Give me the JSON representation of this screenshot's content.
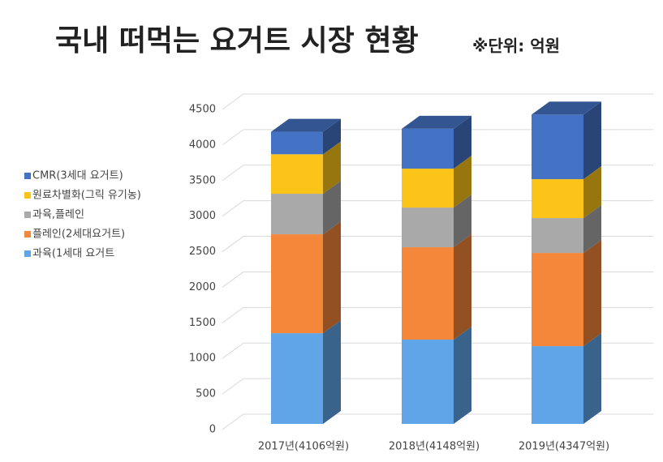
{
  "chart_data": {
    "type": "bar3d",
    "title": "국내 떠먹는 요거트 시장 현황",
    "subtitle": "※단위: 억원",
    "categories": [
      "2017년(4106억원)",
      "2018년(4148억원)",
      "2019년(4347억원)"
    ],
    "series": [
      {
        "name": "과육(1세대 요거트",
        "color": "#5fa5e8",
        "values": [
          1275,
          1185,
          1093
        ]
      },
      {
        "name": "플레인(2세대요거트)",
        "color": "#f5873a",
        "values": [
          1390,
          1298,
          1310
        ]
      },
      {
        "name": "과육,플레인",
        "color": "#a9a9a9",
        "values": [
          570,
          558,
          490
        ]
      },
      {
        "name": "원료차별화(그릭 유기농)",
        "color": "#fcc419",
        "values": [
          555,
          547,
          547
        ]
      },
      {
        "name": "CMR(3세대 요거트)",
        "color": "#4472c4",
        "values": [
          316,
          560,
          907
        ]
      }
    ],
    "ylim": [
      0,
      4500
    ],
    "yticks": [
      0,
      500,
      1000,
      1500,
      2000,
      2500,
      3000,
      3500,
      4000,
      4500
    ],
    "grid": true,
    "stacked": true,
    "legend": "left"
  }
}
